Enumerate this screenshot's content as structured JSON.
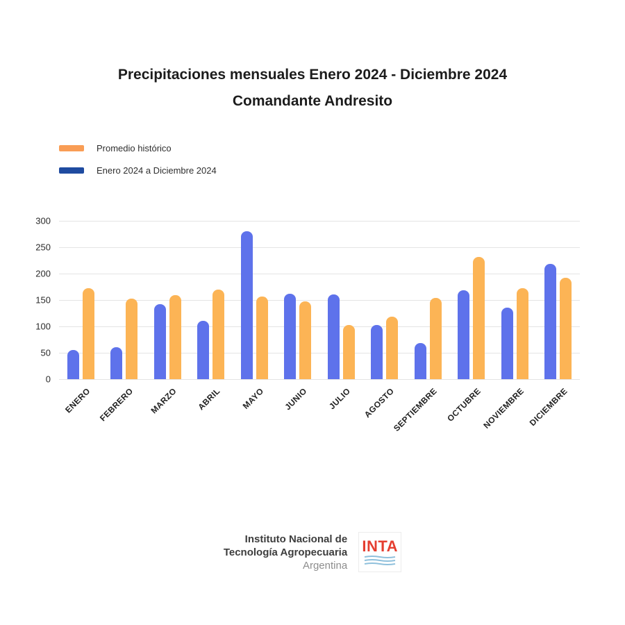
{
  "title": {
    "line1": "Precipitaciones mensuales Enero 2024 - Diciembre 2024",
    "line2": "Comandante Andresito"
  },
  "legend": [
    {
      "label": "Promedio histórico",
      "color": "#f99d55"
    },
    {
      "label": "Enero 2024 a Diciembre 2024",
      "color": "#1f4ba0"
    }
  ],
  "footer": {
    "line1": "Instituto Nacional de",
    "line2": "Tecnología Agropecuaria",
    "line3": "Argentina",
    "logo_text": "INTA"
  },
  "chart_data": {
    "type": "bar",
    "title": "Precipitaciones mensuales Enero 2024 - Diciembre 2024 — Comandante Andresito",
    "categories": [
      "ENERO",
      "FEBRERO",
      "MARZO",
      "ABRIL",
      "MAYO",
      "JUNIO",
      "JULIO",
      "AGOSTO",
      "SEPTIEMBRE",
      "OCTUBRE",
      "NOVIEMBRE",
      "DICIEMBRE"
    ],
    "series": [
      {
        "name": "Enero 2024 a Diciembre 2024",
        "color": "#5e72eb",
        "values": [
          55,
          60,
          142,
          110,
          280,
          162,
          161,
          102,
          68,
          169,
          135,
          218
        ]
      },
      {
        "name": "Promedio histórico",
        "color": "#fcb455",
        "values": [
          173,
          153,
          159,
          170,
          156,
          148,
          103,
          118,
          154,
          231,
          172,
          192
        ]
      }
    ],
    "xlabel": "",
    "ylabel": "",
    "ylim": [
      0,
      300
    ],
    "yticks": [
      0,
      50,
      100,
      150,
      200,
      250,
      300
    ],
    "grid": true,
    "legend_position": "top-left"
  }
}
